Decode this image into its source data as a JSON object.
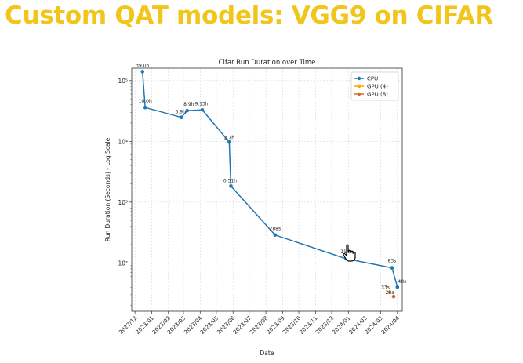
{
  "slide": {
    "title": "Custom QAT models: VGG9 on CIFAR",
    "title_color": "#f2c51b"
  },
  "chart_data": {
    "type": "line",
    "title": "Cifar Run Duration over Time",
    "xlabel": "Date",
    "ylabel": "Run Duration (Seconds) - Log Scale",
    "yscale": "log",
    "grid": true,
    "legend_position": "top-right",
    "x_ticks": [
      "2022/12",
      "2023/01",
      "2023/02",
      "2023/03",
      "2023/04",
      "2023/05",
      "2023/06",
      "2023/07",
      "2023/08",
      "2023/09",
      "2023/10",
      "2023/11",
      "2023/12",
      "2024/01",
      "2024/02",
      "2024/03",
      "2024/04"
    ],
    "y_ticks": [
      {
        "value": 100,
        "label": "10²"
      },
      {
        "value": 1000,
        "label": "10³"
      },
      {
        "value": 10000,
        "label": "10⁴"
      },
      {
        "value": 100000,
        "label": "10⁵"
      }
    ],
    "xlim": [
      "2022-11-25",
      "2024-04-10"
    ],
    "ylim": [
      16,
      160000
    ],
    "series": [
      {
        "name": "CPU",
        "color": "#1f77b4",
        "marker": "dot",
        "points": [
          {
            "x": "2022-12-15",
            "y": 140400,
            "label": "39.0h"
          },
          {
            "x": "2022-12-20",
            "y": 36000,
            "label": "10.0h"
          },
          {
            "x": "2023-02-25",
            "y": 24840,
            "label": "6.9h"
          },
          {
            "x": "2023-03-08",
            "y": 32040,
            "label": "8.9h"
          },
          {
            "x": "2023-04-05",
            "y": 32868,
            "label": "9.13h"
          },
          {
            "x": "2023-05-25",
            "y": 9720,
            "label": "2.7h"
          },
          {
            "x": "2023-05-28",
            "y": 1836,
            "label": "0.51h"
          },
          {
            "x": "2023-08-18",
            "y": 288,
            "label": "288s"
          },
          {
            "x": "2023-12-28",
            "y": 117,
            "label": "117s"
          },
          {
            "x": "2024-03-22",
            "y": 83,
            "label": "83s"
          },
          {
            "x": "2024-04-01",
            "y": 40,
            "label": "40s"
          }
        ]
      },
      {
        "name": "GPU (4)",
        "color": "#ffa500",
        "marker": "dot",
        "points": [
          {
            "x": "2024-03-17",
            "y": 33,
            "label": "33s"
          }
        ]
      },
      {
        "name": "GPU (8)",
        "color": "#d2691e",
        "marker": "dot",
        "points": [
          {
            "x": "2024-03-25",
            "y": 28,
            "label": "28s"
          }
        ]
      }
    ]
  }
}
